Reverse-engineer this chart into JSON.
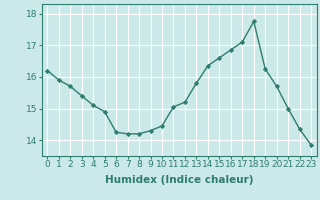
{
  "x": [
    0,
    1,
    2,
    3,
    4,
    5,
    6,
    7,
    8,
    9,
    10,
    11,
    12,
    13,
    14,
    15,
    16,
    17,
    18,
    19,
    20,
    21,
    22,
    23
  ],
  "y": [
    16.2,
    15.9,
    15.7,
    15.4,
    15.1,
    14.9,
    14.25,
    14.2,
    14.2,
    14.3,
    14.45,
    15.05,
    15.2,
    15.8,
    16.35,
    16.6,
    16.85,
    17.1,
    17.75,
    16.25,
    15.7,
    15.0,
    14.35,
    13.85
  ],
  "line_color": "#2e7d6e",
  "marker": "D",
  "marker_size": 2.2,
  "bg_color": "#cce9e9",
  "grid_color": "#ffffff",
  "xlabel": "Humidex (Indice chaleur)",
  "xlabel_fontsize": 7.5,
  "tick_fontsize": 6.5,
  "ylim": [
    13.5,
    18.3
  ],
  "yticks": [
    14,
    15,
    16,
    17,
    18
  ],
  "xticks": [
    0,
    1,
    2,
    3,
    4,
    5,
    6,
    7,
    8,
    9,
    10,
    11,
    12,
    13,
    14,
    15,
    16,
    17,
    18,
    19,
    20,
    21,
    22,
    23
  ],
  "line_width": 1.0
}
